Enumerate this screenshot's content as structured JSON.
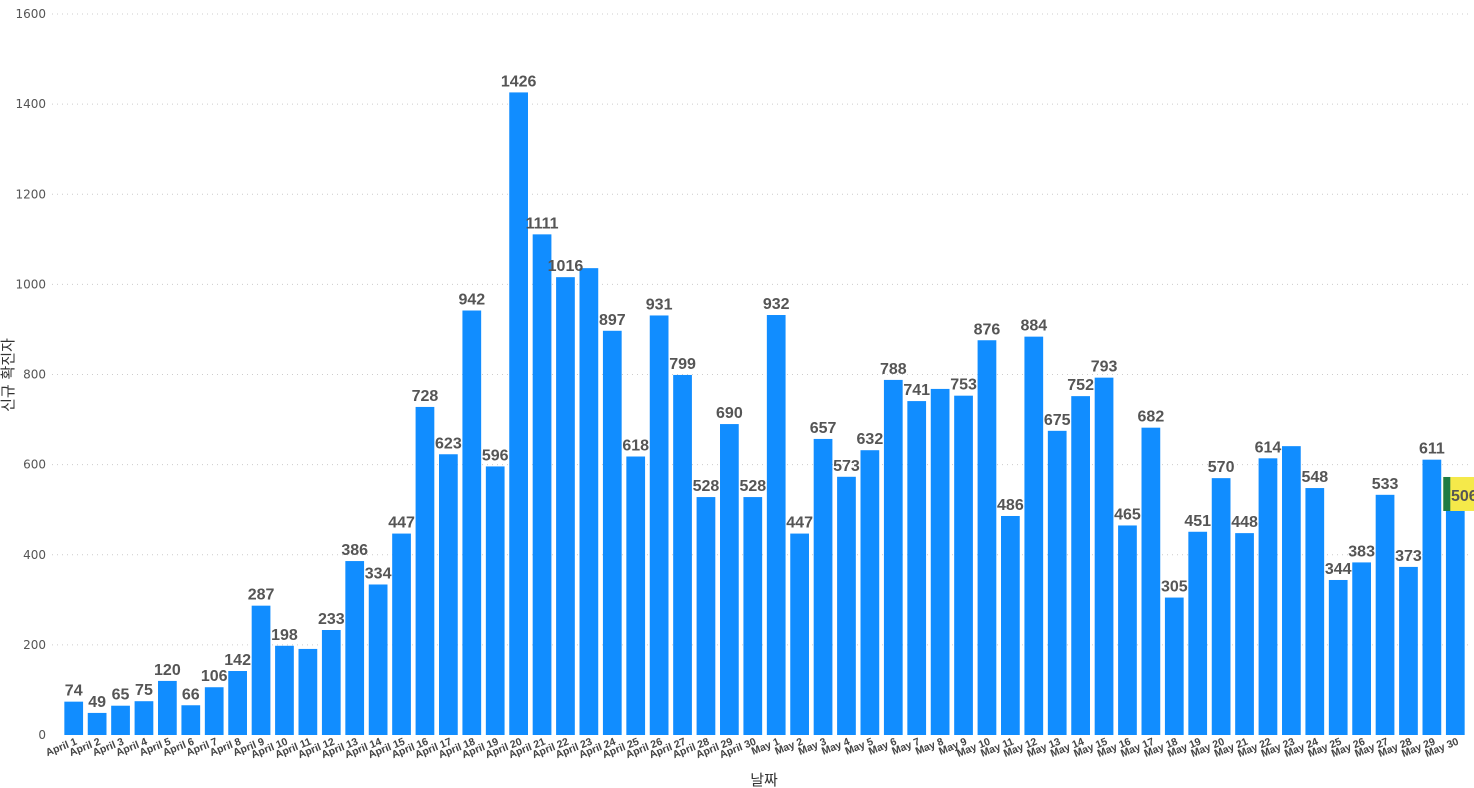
{
  "chart_data": {
    "type": "bar",
    "xlabel": "날짜",
    "ylabel": "신규 확진자",
    "ylim": [
      0,
      1600
    ],
    "yticks": [
      0,
      200,
      400,
      600,
      800,
      1000,
      1200,
      1400,
      1600
    ],
    "grid": true,
    "bar_color": "#118DFF",
    "highlight": {
      "index": 59,
      "label_bg": "#F5E94A",
      "marker_color": "#1E7B45"
    },
    "categories": [
      "April 1",
      "April 2",
      "April 3",
      "April 4",
      "April 5",
      "April 6",
      "April 7",
      "April 8",
      "April 9",
      "April 10",
      "April 11",
      "April 12",
      "April 13",
      "April 14",
      "April 15",
      "April 16",
      "April 17",
      "April 18",
      "April 19",
      "April 20",
      "April 21",
      "April 22",
      "April 23",
      "April 24",
      "April 25",
      "April 26",
      "April 27",
      "April 28",
      "April 29",
      "April 30",
      "May 1",
      "May 2",
      "May 3",
      "May 4",
      "May 5",
      "May 6",
      "May 7",
      "May 8",
      "May 9",
      "May 10",
      "May 11",
      "May 12",
      "May 13",
      "May 14",
      "May 15",
      "May 16",
      "May 17",
      "May 18",
      "May 19",
      "May 20",
      "May 21",
      "May 22",
      "May 23",
      "May 24",
      "May 25",
      "May 26",
      "May 27",
      "May 28",
      "May 29",
      "May 30"
    ],
    "values": [
      74,
      49,
      65,
      75,
      120,
      66,
      106,
      142,
      287,
      198,
      191,
      233,
      386,
      334,
      447,
      728,
      623,
      942,
      596,
      1426,
      1111,
      1016,
      1036,
      897,
      618,
      931,
      799,
      528,
      690,
      528,
      932,
      447,
      657,
      573,
      632,
      788,
      741,
      768,
      753,
      876,
      486,
      884,
      675,
      752,
      793,
      465,
      682,
      305,
      451,
      570,
      448,
      614,
      641,
      548,
      344,
      383,
      533,
      373,
      611,
      506
    ],
    "labels": [
      "74",
      "49",
      "65",
      "75",
      "120",
      "66",
      "106",
      "142",
      "287",
      "198",
      "",
      "233",
      "386",
      "334",
      "447",
      "728",
      "623",
      "942",
      "596",
      "1426",
      "1111",
      "1016",
      "",
      "897",
      "618",
      "931",
      "799",
      "528",
      "690",
      "528",
      "932",
      "447",
      "657",
      "573",
      "632",
      "788",
      "741",
      "",
      "753",
      "876",
      "486",
      "884",
      "675",
      "752",
      "793",
      "465",
      "682",
      "305",
      "451",
      "570",
      "448",
      "614",
      "",
      "548",
      "344",
      "383",
      "533",
      "373",
      "611",
      "506"
    ]
  }
}
